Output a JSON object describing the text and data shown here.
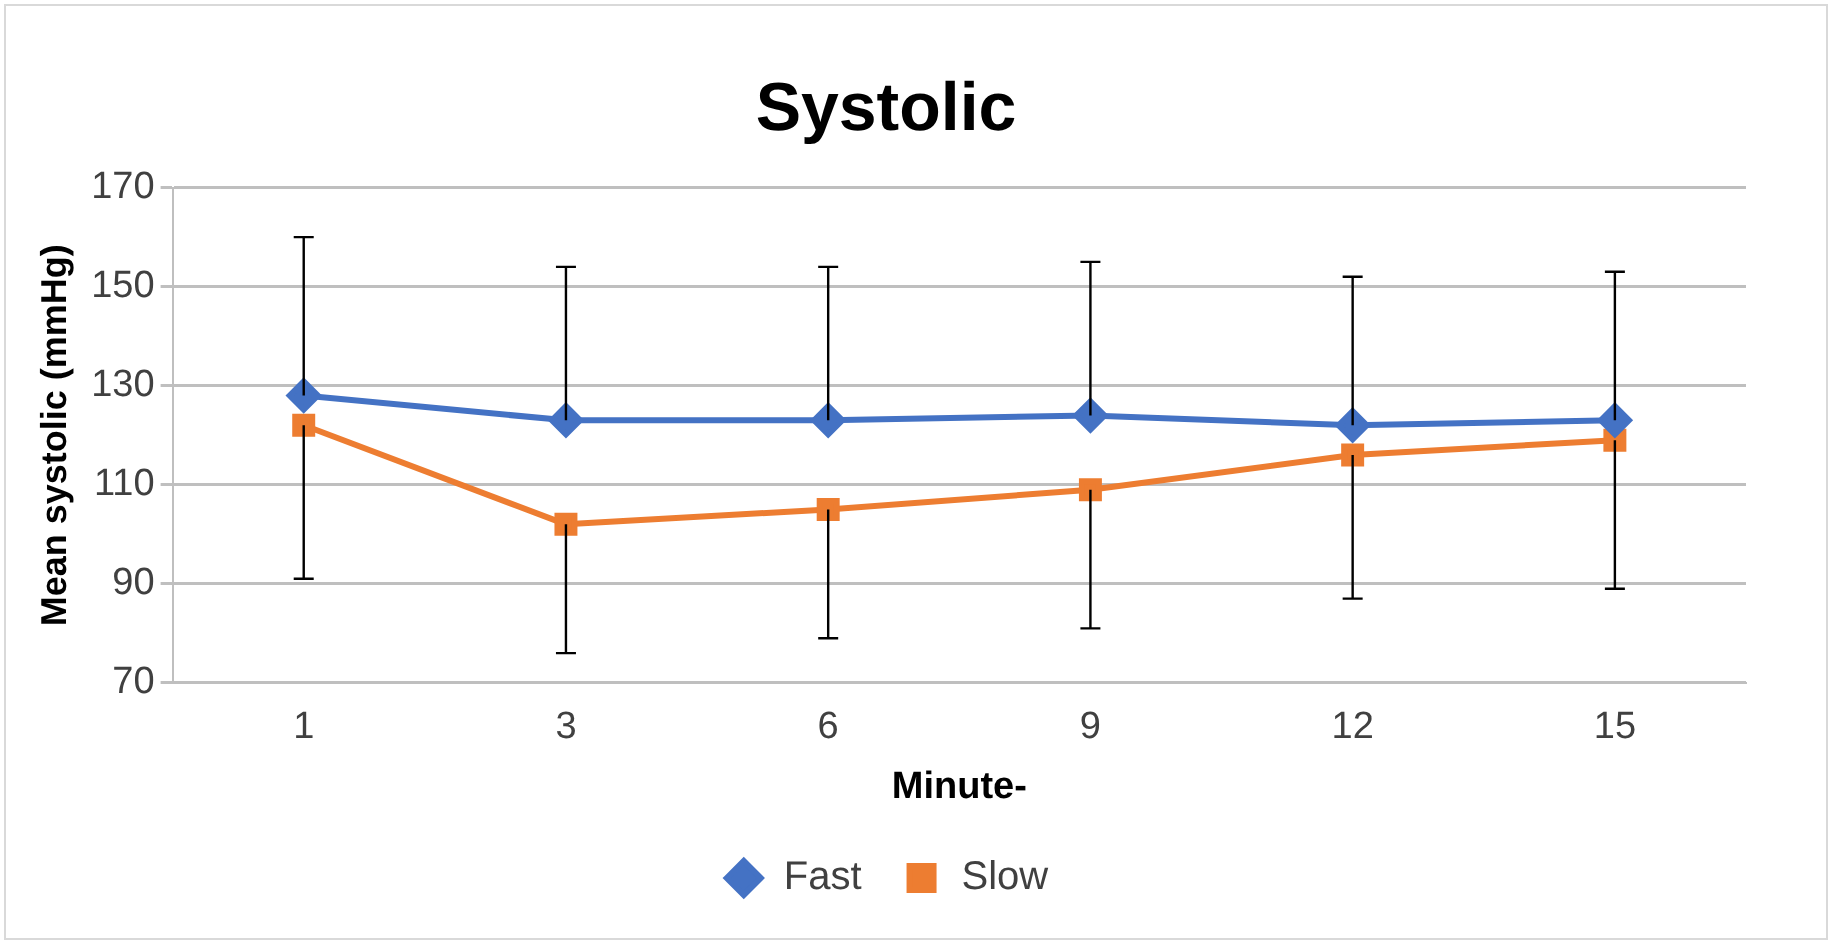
{
  "chart_data": {
    "type": "line",
    "title": "Systolic",
    "xlabel": "Minute-",
    "ylabel": "Mean systolic (mmHg)",
    "categories": [
      "1",
      "3",
      "6",
      "9",
      "12",
      "15"
    ],
    "series": [
      {
        "name": "Fast",
        "color": "#4472c4",
        "marker": "diamond",
        "values": [
          128,
          123,
          123,
          124,
          122,
          123
        ],
        "errors": [
          [
            128,
            160
          ],
          [
            123,
            154
          ],
          [
            123,
            154
          ],
          [
            124,
            155
          ],
          [
            122,
            152
          ],
          [
            123,
            153
          ]
        ]
      },
      {
        "name": "Slow",
        "color": "#ed7d31",
        "marker": "square",
        "values": [
          122,
          102,
          105,
          109,
          116,
          119
        ],
        "errors": [
          [
            91,
            122
          ],
          [
            76,
            102
          ],
          [
            79,
            105
          ],
          [
            81,
            109
          ],
          [
            87,
            116
          ],
          [
            89,
            119
          ]
        ]
      }
    ],
    "ylim": [
      70,
      170
    ],
    "yticks": [
      70,
      90,
      110,
      130,
      150,
      170
    ],
    "grid": "y",
    "legend": "bottom",
    "line_style": "solid"
  }
}
